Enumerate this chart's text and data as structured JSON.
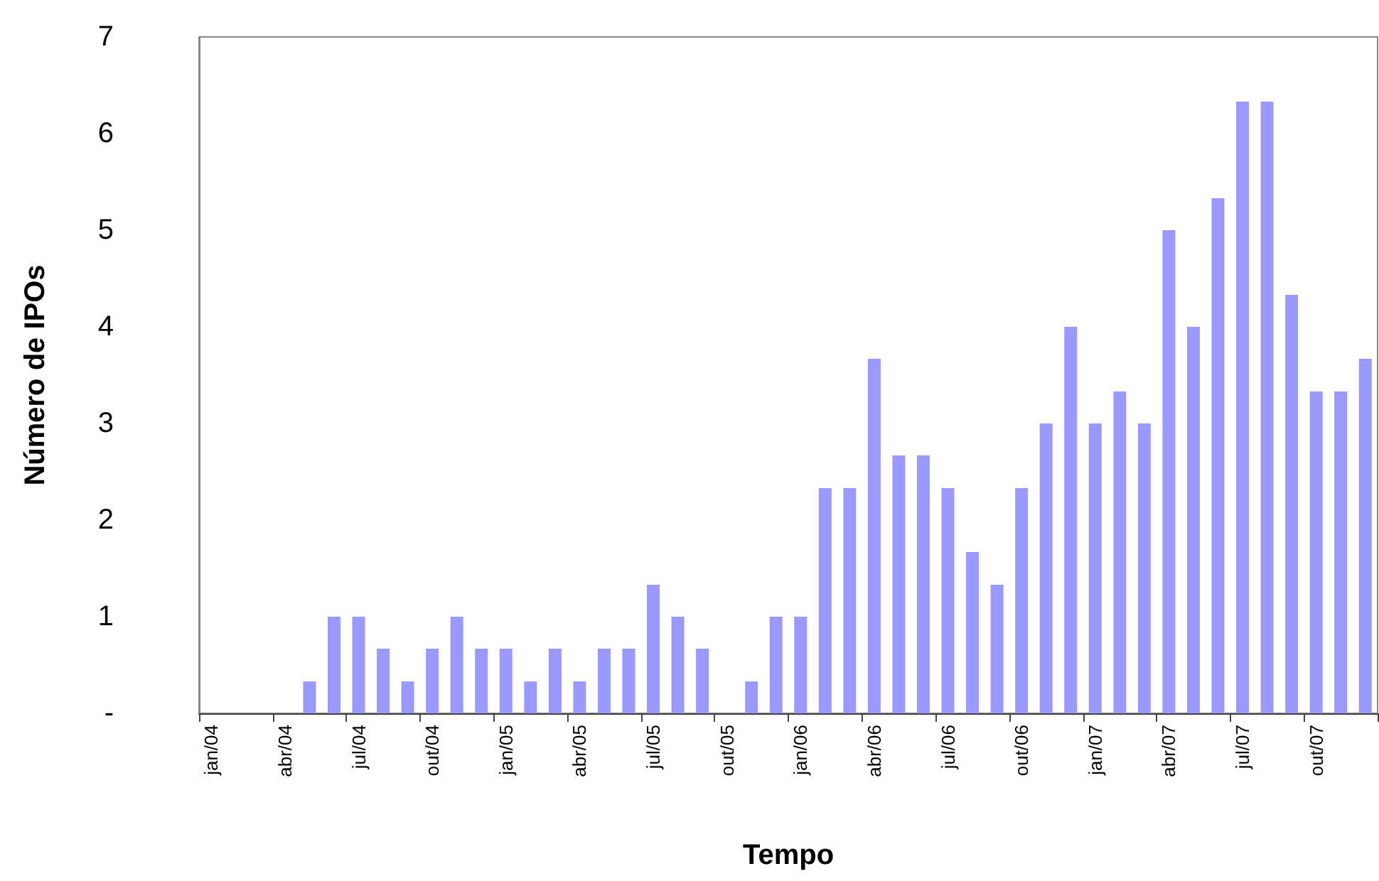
{
  "chart_data": {
    "type": "bar",
    "xlabel": "Tempo",
    "ylabel": "Número de IPOs",
    "categories": [
      "jan/04",
      null,
      null,
      "abr/04",
      null,
      null,
      "jul/04",
      null,
      null,
      "out/04",
      null,
      null,
      "jan/05",
      null,
      null,
      "abr/05",
      null,
      null,
      "jul/05",
      null,
      null,
      "out/05",
      null,
      null,
      "jan/06",
      null,
      null,
      "abr/06",
      null,
      null,
      "jul/06",
      null,
      null,
      "out/06",
      null,
      null,
      "jan/07",
      null,
      null,
      "abr/07",
      null,
      null,
      "jul/07",
      null,
      null,
      "out/07",
      null,
      null
    ],
    "values": [
      0,
      0,
      0,
      0,
      0.33,
      1,
      1,
      0.67,
      0.33,
      0.67,
      1,
      0.67,
      0.67,
      0.33,
      0.67,
      0.33,
      0.67,
      0.67,
      1.33,
      1,
      0.67,
      0,
      0.33,
      1,
      1,
      2.33,
      2.33,
      3.67,
      2.67,
      2.67,
      2.33,
      1.67,
      1.33,
      2.33,
      3,
      4,
      3,
      3.33,
      3,
      5,
      4,
      5.33,
      6.33,
      6.33,
      4.33,
      3.33,
      3.33,
      3.67
    ],
    "color": "#9999ff",
    "ylim": [
      0,
      7
    ],
    "yticks": [
      {
        "value": 0,
        "label": "-"
      },
      1,
      2,
      3,
      4,
      5,
      6,
      7
    ],
    "grid": false
  }
}
